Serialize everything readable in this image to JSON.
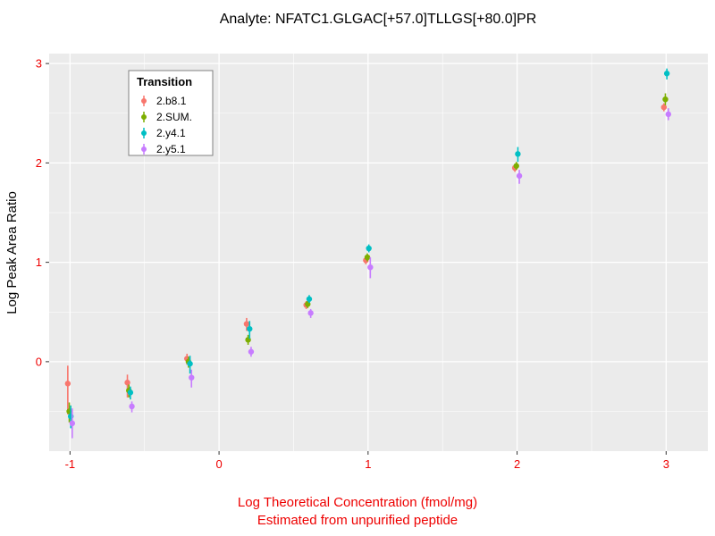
{
  "chart_data": {
    "type": "scatter",
    "title": "Analyte: NFATC1.GLGAC[+57.0]TLLGS[+80.0]PR",
    "xlabel": "Log Theoretical Concentration (fmol/mg)",
    "xlabel_line2": "Estimated from unpurified peptide",
    "ylabel": "Log Peak Area Ratio",
    "xlim": [
      -1.14,
      3.28
    ],
    "ylim": [
      -0.9,
      3.1
    ],
    "xticks": [
      -1,
      0,
      1,
      2,
      3
    ],
    "yticks": [
      0,
      1,
      2,
      3
    ],
    "x_minor": [
      -0.5,
      0.5,
      1.5,
      2.5
    ],
    "y_minor": [
      -0.5,
      0.5,
      1.5,
      2.5
    ],
    "grid": true,
    "legend_position": "inside-top-left",
    "legend": {
      "title": "Transition"
    },
    "styles": {
      "panel_bg": "#EBEBEB",
      "grid_major": "#FFFFFF",
      "grid_minor": "#FFFFFF",
      "tick_mark_color": "#333333",
      "tick_label_color": "#EE0000",
      "xlabel_color": "#EE0000",
      "title_color": "#000000",
      "ylabel_color": "#000000",
      "legend_border": "#808080",
      "legend_bg": "#FFFFFF"
    },
    "series": [
      {
        "name": "2.b8.1",
        "color": "#F8766D",
        "dodge": -0.015,
        "points": [
          [
            -1.0,
            -0.22,
            -0.53,
            -0.04
          ],
          [
            -0.6,
            -0.21,
            -0.36,
            -0.13
          ],
          [
            -0.2,
            0.03,
            -0.03,
            0.08
          ],
          [
            0.2,
            0.38,
            0.31,
            0.44
          ],
          [
            0.6,
            0.57,
            0.53,
            0.61
          ],
          [
            1.0,
            1.02,
            0.98,
            1.06
          ],
          [
            2.0,
            1.95,
            1.91,
            1.99
          ],
          [
            3.0,
            2.56,
            2.52,
            2.6
          ]
        ]
      },
      {
        "name": "2.SUM.",
        "color": "#7CAE00",
        "dodge": -0.005,
        "points": [
          [
            -1.0,
            -0.5,
            -0.61,
            -0.41
          ],
          [
            -0.6,
            -0.29,
            -0.36,
            -0.23
          ],
          [
            -0.2,
            0.0,
            -0.06,
            0.05
          ],
          [
            0.2,
            0.22,
            0.17,
            0.27
          ],
          [
            0.6,
            0.58,
            0.54,
            0.62
          ],
          [
            1.0,
            1.05,
            1.01,
            1.09
          ],
          [
            2.0,
            1.97,
            1.93,
            2.01
          ],
          [
            3.0,
            2.64,
            2.58,
            2.7
          ]
        ]
      },
      {
        "name": "2.y4.1",
        "color": "#00BFC4",
        "dodge": 0.005,
        "points": [
          [
            -1.0,
            -0.55,
            -0.67,
            -0.44
          ],
          [
            -0.6,
            -0.31,
            -0.38,
            -0.25
          ],
          [
            -0.2,
            -0.02,
            -0.12,
            0.06
          ],
          [
            0.2,
            0.33,
            0.23,
            0.41
          ],
          [
            0.6,
            0.63,
            0.59,
            0.67
          ],
          [
            1.0,
            1.14,
            1.1,
            1.18
          ],
          [
            2.0,
            2.09,
            2.01,
            2.16
          ],
          [
            3.0,
            2.9,
            2.84,
            2.95
          ]
        ]
      },
      {
        "name": "2.y5.1",
        "color": "#C77CFF",
        "dodge": 0.015,
        "points": [
          [
            -1.0,
            -0.62,
            -0.77,
            -0.47
          ],
          [
            -0.6,
            -0.45,
            -0.51,
            -0.4
          ],
          [
            -0.2,
            -0.16,
            -0.26,
            -0.08
          ],
          [
            0.2,
            0.1,
            0.05,
            0.15
          ],
          [
            0.6,
            0.49,
            0.44,
            0.53
          ],
          [
            1.0,
            0.95,
            0.84,
            1.05
          ],
          [
            2.0,
            1.87,
            1.79,
            1.93
          ],
          [
            3.0,
            2.49,
            2.43,
            2.55
          ]
        ]
      }
    ]
  }
}
